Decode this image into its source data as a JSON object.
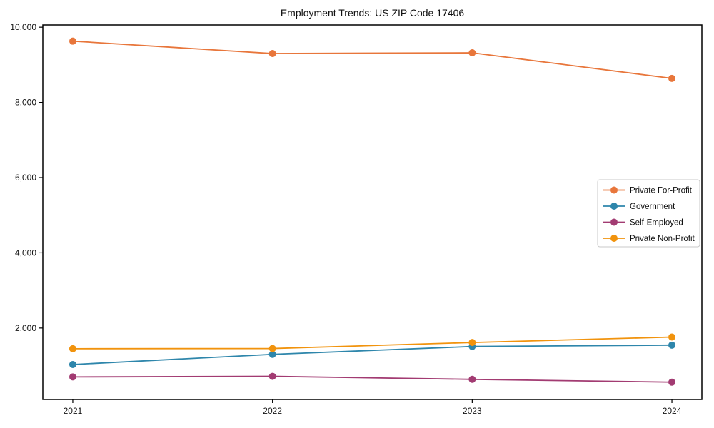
{
  "chart_data": {
    "type": "line",
    "title": "Employment Trends: US ZIP Code 17406",
    "x": [
      2021,
      2022,
      2023,
      2024
    ],
    "x_tick_labels": [
      "2021",
      "2022",
      "2023",
      "2024"
    ],
    "series": [
      {
        "name": "Private For-Profit",
        "color": "#E8763B",
        "values": [
          9630,
          9300,
          9320,
          8640
        ]
      },
      {
        "name": "Government",
        "color": "#2E86AB",
        "values": [
          1030,
          1300,
          1510,
          1545
        ]
      },
      {
        "name": "Self-Employed",
        "color": "#A23B72",
        "values": [
          700,
          715,
          635,
          560
        ]
      },
      {
        "name": "Private Non-Profit",
        "color": "#F1930D",
        "values": [
          1450,
          1455,
          1615,
          1760
        ]
      }
    ],
    "xlabel": "",
    "ylabel": "",
    "xlim": [
      2020.85,
      2024.15
    ],
    "ylim": [
      100,
      10060
    ],
    "yticks": [
      2000,
      4000,
      6000,
      8000,
      10000
    ],
    "ytick_labels": [
      "2,000",
      "4,000",
      "6,000",
      "8,000",
      "10,000"
    ],
    "grid": false,
    "legend_position": "center-right",
    "axis_color": "#000000",
    "legend_border_color": "#c9c9c9"
  }
}
